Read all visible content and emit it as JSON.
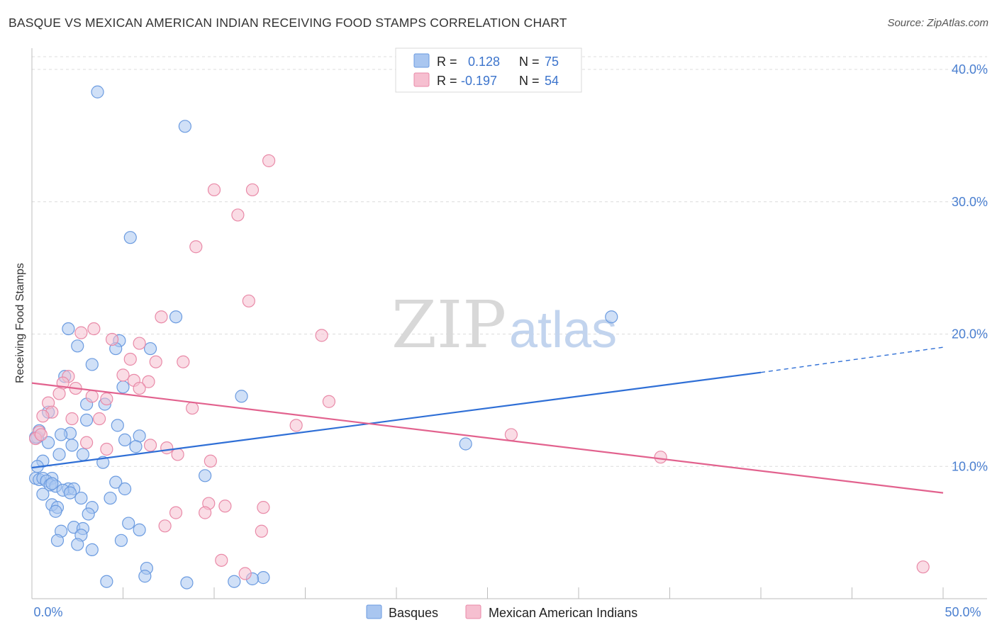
{
  "title": "BASQUE VS MEXICAN AMERICAN INDIAN RECEIVING FOOD STAMPS CORRELATION CHART",
  "source": "Source: ZipAtlas.com",
  "watermark": {
    "zip": "ZIP",
    "atlas": "atlas"
  },
  "chart_data": {
    "type": "scatter",
    "xlim": [
      0,
      50
    ],
    "ylim": [
      0,
      40
    ],
    "xlabel": "",
    "ylabel": "Receiving Food Stamps",
    "x_tick_labels": [
      "0.0%",
      "50.0%"
    ],
    "y_ticks": [
      10,
      20,
      30,
      40
    ],
    "y_tick_labels": [
      "10.0%",
      "20.0%",
      "30.0%",
      "40.0%"
    ],
    "grid": true,
    "legend_position": "top-center",
    "stats": [
      {
        "r_label": "R =",
        "r_value": "0.128",
        "n_label": "N =",
        "n_value": "75"
      },
      {
        "r_label": "R =",
        "r_value": "-0.197",
        "n_label": "N =",
        "n_value": "54"
      }
    ],
    "series": [
      {
        "name": "Basques",
        "color": "#6b9be0",
        "fill": "#a9c6f0",
        "points": [
          [
            3.6,
            38.3
          ],
          [
            8.4,
            35.7
          ],
          [
            5.4,
            27.3
          ],
          [
            7.9,
            21.3
          ],
          [
            31.8,
            21.3
          ],
          [
            2,
            20.4
          ],
          [
            4.8,
            19.5
          ],
          [
            2.5,
            19.1
          ],
          [
            4.6,
            18.9
          ],
          [
            6.5,
            18.9
          ],
          [
            3.3,
            17.7
          ],
          [
            1.8,
            16.8
          ],
          [
            5,
            16
          ],
          [
            11.5,
            15.3
          ],
          [
            3,
            14.7
          ],
          [
            4,
            14.7
          ],
          [
            0.9,
            14.1
          ],
          [
            3,
            13.5
          ],
          [
            4.7,
            13.1
          ],
          [
            2.1,
            12.5
          ],
          [
            1.6,
            12.4
          ],
          [
            5.9,
            12.3
          ],
          [
            0.3,
            12.2
          ],
          [
            0.9,
            11.8
          ],
          [
            5.1,
            12
          ],
          [
            2.2,
            11.6
          ],
          [
            5.7,
            11.5
          ],
          [
            23.8,
            11.7
          ],
          [
            1.5,
            10.9
          ],
          [
            2.8,
            10.9
          ],
          [
            0.6,
            10.4
          ],
          [
            3.9,
            10.3
          ],
          [
            0.3,
            10
          ],
          [
            0.2,
            9.1
          ],
          [
            0.4,
            9
          ],
          [
            1.1,
            9.1
          ],
          [
            0.6,
            9.1
          ],
          [
            0.8,
            8.9
          ],
          [
            9.5,
            9.3
          ],
          [
            4.6,
            8.8
          ],
          [
            1,
            8.6
          ],
          [
            1.3,
            8.5
          ],
          [
            1.1,
            8.7
          ],
          [
            2,
            8.3
          ],
          [
            2.3,
            8.3
          ],
          [
            1.7,
            8.2
          ],
          [
            2.1,
            8
          ],
          [
            5.1,
            8.3
          ],
          [
            2.7,
            7.6
          ],
          [
            4.3,
            7.6
          ],
          [
            0.6,
            7.9
          ],
          [
            1.1,
            7.1
          ],
          [
            3.3,
            6.9
          ],
          [
            1.4,
            6.9
          ],
          [
            3.1,
            6.4
          ],
          [
            1.3,
            6.6
          ],
          [
            5.3,
            5.7
          ],
          [
            2.3,
            5.4
          ],
          [
            1.6,
            5.1
          ],
          [
            5.9,
            5.2
          ],
          [
            2.8,
            5.3
          ],
          [
            2.7,
            4.8
          ],
          [
            1.4,
            4.4
          ],
          [
            4.9,
            4.4
          ],
          [
            2.5,
            4.1
          ],
          [
            3.3,
            3.7
          ],
          [
            6.3,
            2.3
          ],
          [
            6.2,
            1.7
          ],
          [
            4.1,
            1.3
          ],
          [
            8.5,
            1.2
          ],
          [
            11.1,
            1.3
          ],
          [
            12.7,
            1.6
          ],
          [
            12.1,
            1.5
          ],
          [
            0.2,
            12.2
          ],
          [
            0.4,
            12.7
          ]
        ],
        "trend": {
          "x": [
            0,
            40
          ],
          "y": [
            9.9,
            17.1
          ],
          "dashed_x": [
            40,
            50
          ],
          "dashed_y": [
            17.1,
            19
          ]
        }
      },
      {
        "name": "Mexican American Indians",
        "color": "#e98aa8",
        "fill": "#f6bfd0",
        "points": [
          [
            13,
            33.1
          ],
          [
            10,
            30.9
          ],
          [
            12.1,
            30.9
          ],
          [
            11.3,
            29
          ],
          [
            9,
            26.6
          ],
          [
            11.9,
            22.5
          ],
          [
            7.1,
            21.3
          ],
          [
            3.4,
            20.4
          ],
          [
            2.7,
            20.1
          ],
          [
            15.9,
            19.9
          ],
          [
            4.4,
            19.6
          ],
          [
            5.9,
            19.3
          ],
          [
            5.4,
            18.1
          ],
          [
            6.8,
            17.9
          ],
          [
            8.3,
            17.9
          ],
          [
            2,
            16.8
          ],
          [
            5,
            16.9
          ],
          [
            5.6,
            16.5
          ],
          [
            6.4,
            16.4
          ],
          [
            1.7,
            16.3
          ],
          [
            2.4,
            15.9
          ],
          [
            5.9,
            15.9
          ],
          [
            1.5,
            15.5
          ],
          [
            3.3,
            15.3
          ],
          [
            4.1,
            15.1
          ],
          [
            16.3,
            14.9
          ],
          [
            0.9,
            14.8
          ],
          [
            8.8,
            14.4
          ],
          [
            1.1,
            14.1
          ],
          [
            0.6,
            13.8
          ],
          [
            2.2,
            13.6
          ],
          [
            3.7,
            13.6
          ],
          [
            14.5,
            13.1
          ],
          [
            0.4,
            12.6
          ],
          [
            0.2,
            12.1
          ],
          [
            0.5,
            12.4
          ],
          [
            26.3,
            12.4
          ],
          [
            3,
            11.8
          ],
          [
            6.5,
            11.6
          ],
          [
            7.4,
            11.4
          ],
          [
            4.1,
            11.3
          ],
          [
            8,
            10.9
          ],
          [
            34.5,
            10.7
          ],
          [
            9.8,
            10.4
          ],
          [
            9.7,
            7.2
          ],
          [
            10.6,
            7
          ],
          [
            12.7,
            6.9
          ],
          [
            7.9,
            6.5
          ],
          [
            9.5,
            6.5
          ],
          [
            7.3,
            5.5
          ],
          [
            12.6,
            5.1
          ],
          [
            10.4,
            2.9
          ],
          [
            11.7,
            1.9
          ],
          [
            48.9,
            2.4
          ]
        ],
        "trend": {
          "x": [
            0,
            50
          ],
          "y": [
            16.3,
            8
          ]
        }
      }
    ]
  }
}
